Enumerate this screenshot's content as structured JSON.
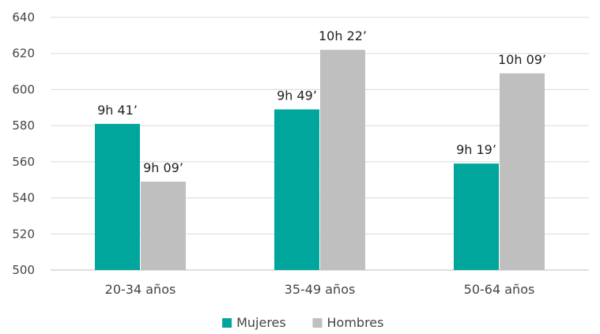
{
  "chart_data": {
    "type": "bar",
    "categories": [
      "20-34 años",
      "35-49 años",
      "50-64 años"
    ],
    "series": [
      {
        "name": "Mujeres",
        "values": [
          581,
          589,
          559
        ],
        "labels": [
          "9h 41’",
          "9h 49’",
          "9h 19’"
        ],
        "color": "#00a69c"
      },
      {
        "name": "Hombres",
        "values": [
          549,
          622,
          609
        ],
        "labels": [
          "9h 09’",
          "10h 22’",
          "10h 09’"
        ],
        "color": "#bfbfbf"
      }
    ],
    "ylim": [
      500,
      640
    ],
    "yticks": [
      500,
      520,
      540,
      560,
      580,
      600,
      620,
      640
    ],
    "grid": true,
    "legend": "bottom"
  }
}
